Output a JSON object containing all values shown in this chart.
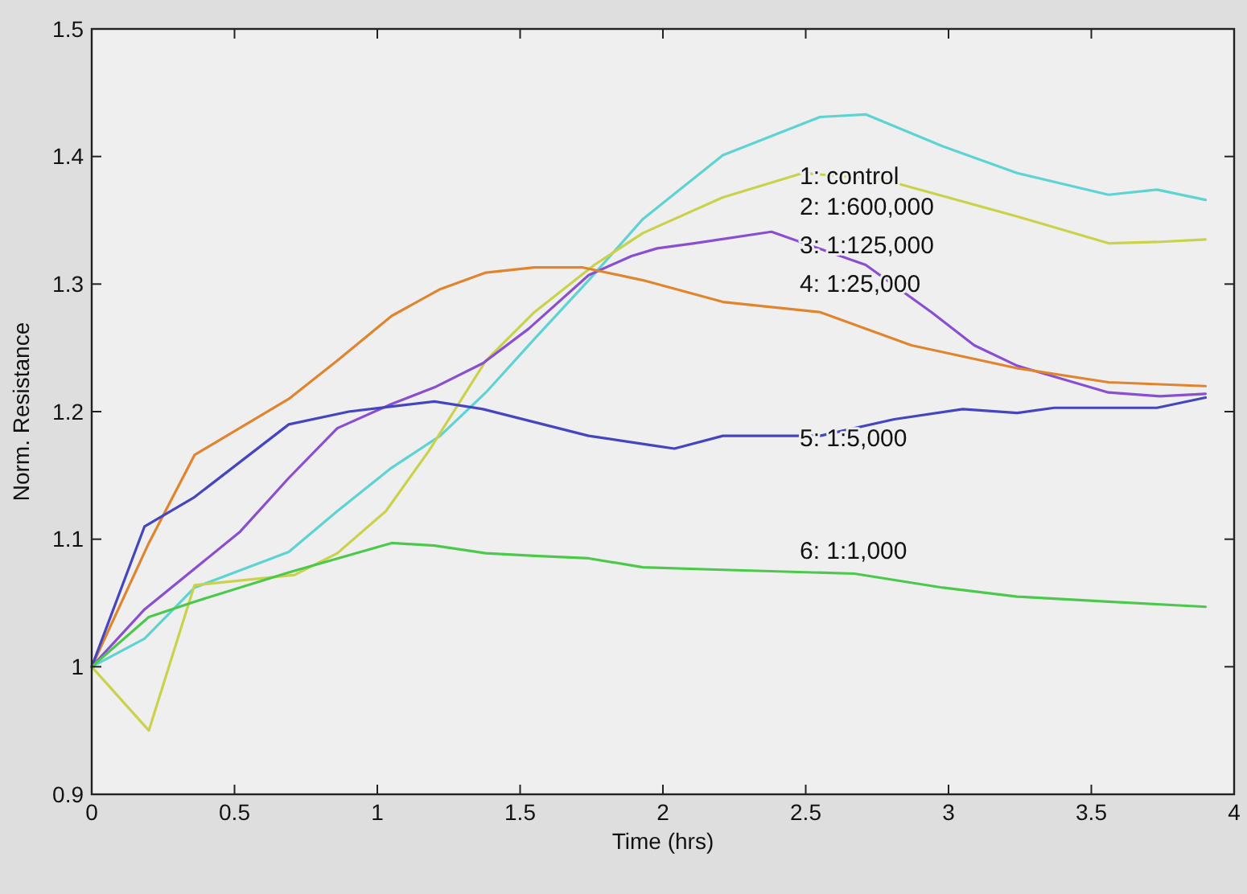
{
  "chart_data": {
    "type": "line",
    "xlabel": "Time (hrs)",
    "ylabel": "Norm. Resistance",
    "xlim": [
      0,
      4
    ],
    "ylim": [
      0.9,
      1.5
    ],
    "xticks": [
      0,
      0.5,
      1,
      1.5,
      2,
      2.5,
      3,
      3.5,
      4
    ],
    "yticks": [
      0.9,
      1,
      1.1,
      1.2,
      1.3,
      1.4,
      1.5
    ],
    "grid": false,
    "marker": "none",
    "line_style": "solid",
    "series": [
      {
        "color": "#5ed3d3",
        "x": [
          0,
          0.185,
          0.36,
          0.69,
          0.86,
          1.05,
          1.22,
          1.38,
          1.55,
          1.74,
          1.93,
          2.21,
          2.55,
          2.71,
          2.98,
          3.24,
          3.56,
          3.73,
          3.9
        ],
        "values": [
          1.0,
          1.022,
          1.062,
          1.09,
          1.122,
          1.156,
          1.181,
          1.215,
          1.257,
          1.303,
          1.351,
          1.401,
          1.431,
          1.433,
          1.408,
          1.387,
          1.37,
          1.374,
          1.366
        ]
      },
      {
        "color": "#c9d24a",
        "x": [
          0,
          0.2,
          0.36,
          0.71,
          0.86,
          1.03,
          1.18,
          1.38,
          1.55,
          1.76,
          1.93,
          2.21,
          2.49,
          2.77,
          3.24,
          3.56,
          3.73,
          3.9
        ],
        "values": [
          1.0,
          0.95,
          1.064,
          1.072,
          1.089,
          1.122,
          1.169,
          1.24,
          1.278,
          1.315,
          1.34,
          1.368,
          1.387,
          1.382,
          1.353,
          1.332,
          1.333,
          1.335
        ]
      },
      {
        "color": "#8a4fd0",
        "x": [
          0,
          0.185,
          0.52,
          0.69,
          0.86,
          1.05,
          1.2,
          1.37,
          1.53,
          1.74,
          1.89,
          1.98,
          2.11,
          2.38,
          2.71,
          2.94,
          3.09,
          3.24,
          3.56,
          3.74,
          3.9
        ],
        "values": [
          1.0,
          1.045,
          1.106,
          1.148,
          1.187,
          1.206,
          1.219,
          1.238,
          1.265,
          1.307,
          1.322,
          1.328,
          1.332,
          1.341,
          1.315,
          1.278,
          1.252,
          1.236,
          1.215,
          1.212,
          1.214
        ]
      },
      {
        "color": "#e0852e",
        "x": [
          0,
          0.2,
          0.36,
          0.69,
          0.86,
          1.05,
          1.22,
          1.38,
          1.55,
          1.72,
          1.93,
          2.21,
          2.55,
          2.87,
          3.24,
          3.56,
          3.9
        ],
        "values": [
          1.0,
          1.097,
          1.166,
          1.21,
          1.24,
          1.275,
          1.296,
          1.309,
          1.313,
          1.313,
          1.303,
          1.286,
          1.278,
          1.252,
          1.234,
          1.223,
          1.22
        ]
      },
      {
        "color": "#4545c0",
        "x": [
          0,
          0.185,
          0.36,
          0.69,
          0.9,
          1.05,
          1.2,
          1.37,
          1.74,
          1.98,
          2.04,
          2.21,
          2.55,
          2.81,
          3.05,
          3.24,
          3.37,
          3.73,
          3.9
        ],
        "values": [
          1.0,
          1.11,
          1.133,
          1.19,
          1.2,
          1.204,
          1.208,
          1.202,
          1.181,
          1.173,
          1.171,
          1.181,
          1.181,
          1.194,
          1.202,
          1.199,
          1.203,
          1.203,
          1.211
        ]
      },
      {
        "color": "#4cc94c",
        "x": [
          0,
          0.2,
          0.36,
          0.69,
          1.05,
          1.2,
          1.38,
          1.55,
          1.74,
          1.93,
          2.21,
          2.67,
          2.98,
          3.24,
          3.56,
          3.9
        ],
        "values": [
          1.0,
          1.039,
          1.051,
          1.074,
          1.097,
          1.095,
          1.089,
          1.087,
          1.085,
          1.078,
          1.076,
          1.073,
          1.062,
          1.055,
          1.051,
          1.047
        ]
      }
    ],
    "annotations": [
      "1: control",
      "2: 1:600,000",
      "3: 1:125,000",
      "4: 1:25,000",
      "5: 1:5,000",
      "6: 1:1,000"
    ]
  }
}
